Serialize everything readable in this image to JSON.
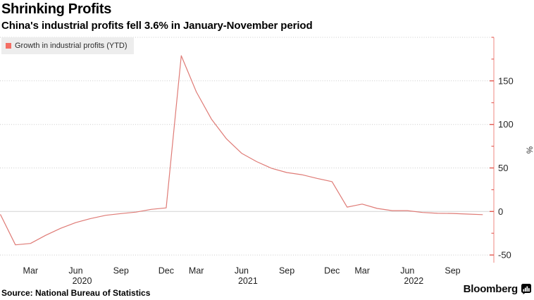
{
  "header": {
    "title": "Shrinking Profits",
    "subtitle": "China's industrial profits fell 3.6% in January-November period"
  },
  "legend": {
    "label": "Growth in industrial profits (YTD)",
    "swatch_color": "#f46e64"
  },
  "footer": {
    "source": "Source: National Bureau of Statistics",
    "brand": "Bloomberg"
  },
  "colors": {
    "line": "#df7b76",
    "axis": "#f0928d",
    "tick": "#e25a52",
    "grid": "#cbcbcb",
    "zero_line": "#d4d4d4",
    "legend_bg": "#ededed"
  },
  "chart_data": {
    "type": "line",
    "title": "Shrinking Profits",
    "subtitle": "China's industrial profits fell 3.6% in January-November period",
    "ylabel": "%",
    "ylim": [
      -58,
      200
    ],
    "yticks_major": [
      150,
      100,
      50,
      0,
      -50
    ],
    "yticks_minor": [
      200,
      175,
      125,
      75,
      25,
      -25
    ],
    "grid": "horizontal-dotted",
    "legend_position": "top-left",
    "axis_side": "right",
    "series": [
      {
        "name": "Growth in industrial profits (YTD)",
        "points": [
          {
            "period": "Dec 2019",
            "value": -3.3
          },
          {
            "period": "Feb 2020",
            "value": -38.3
          },
          {
            "period": "Mar 2020",
            "value": -36.7
          },
          {
            "period": "Apr 2020",
            "value": -27.4
          },
          {
            "period": "May 2020",
            "value": -19.3
          },
          {
            "period": "Jun 2020",
            "value": -12.8
          },
          {
            "period": "Jul 2020",
            "value": -8.1
          },
          {
            "period": "Aug 2020",
            "value": -4.4
          },
          {
            "period": "Sep 2020",
            "value": -2.4
          },
          {
            "period": "Oct 2020",
            "value": -0.7
          },
          {
            "period": "Nov 2020",
            "value": 2.4
          },
          {
            "period": "Dec 2020",
            "value": 4.1
          },
          {
            "period": "Feb 2021",
            "value": 178.9
          },
          {
            "period": "Mar 2021",
            "value": 137.3
          },
          {
            "period": "Apr 2021",
            "value": 106.1
          },
          {
            "period": "May 2021",
            "value": 83.4
          },
          {
            "period": "Jun 2021",
            "value": 66.9
          },
          {
            "period": "Jul 2021",
            "value": 57.3
          },
          {
            "period": "Aug 2021",
            "value": 49.5
          },
          {
            "period": "Sep 2021",
            "value": 44.7
          },
          {
            "period": "Oct 2021",
            "value": 42.2
          },
          {
            "period": "Nov 2021",
            "value": 38.0
          },
          {
            "period": "Dec 2021",
            "value": 34.3
          },
          {
            "period": "Feb 2022",
            "value": 5.0
          },
          {
            "period": "Mar 2022",
            "value": 8.5
          },
          {
            "period": "Apr 2022",
            "value": 3.5
          },
          {
            "period": "May 2022",
            "value": 1.0
          },
          {
            "period": "Jun 2022",
            "value": 1.0
          },
          {
            "period": "Jul 2022",
            "value": -1.1
          },
          {
            "period": "Aug 2022",
            "value": -2.1
          },
          {
            "period": "Sep 2022",
            "value": -2.3
          },
          {
            "period": "Oct 2022",
            "value": -3.0
          },
          {
            "period": "Nov 2022",
            "value": -3.6
          }
        ]
      }
    ],
    "xticks": [
      {
        "label": "Mar",
        "index": 2
      },
      {
        "label": "Jun",
        "index": 5,
        "year": "2020"
      },
      {
        "label": "Sep",
        "index": 8
      },
      {
        "label": "Dec",
        "index": 11
      },
      {
        "label": "Mar",
        "index": 13
      },
      {
        "label": "Jun",
        "index": 16,
        "year": "2021"
      },
      {
        "label": "Sep",
        "index": 19
      },
      {
        "label": "Dec",
        "index": 22
      },
      {
        "label": "Mar",
        "index": 24
      },
      {
        "label": "Jun",
        "index": 27,
        "year": "2022"
      },
      {
        "label": "Sep",
        "index": 30
      }
    ]
  }
}
